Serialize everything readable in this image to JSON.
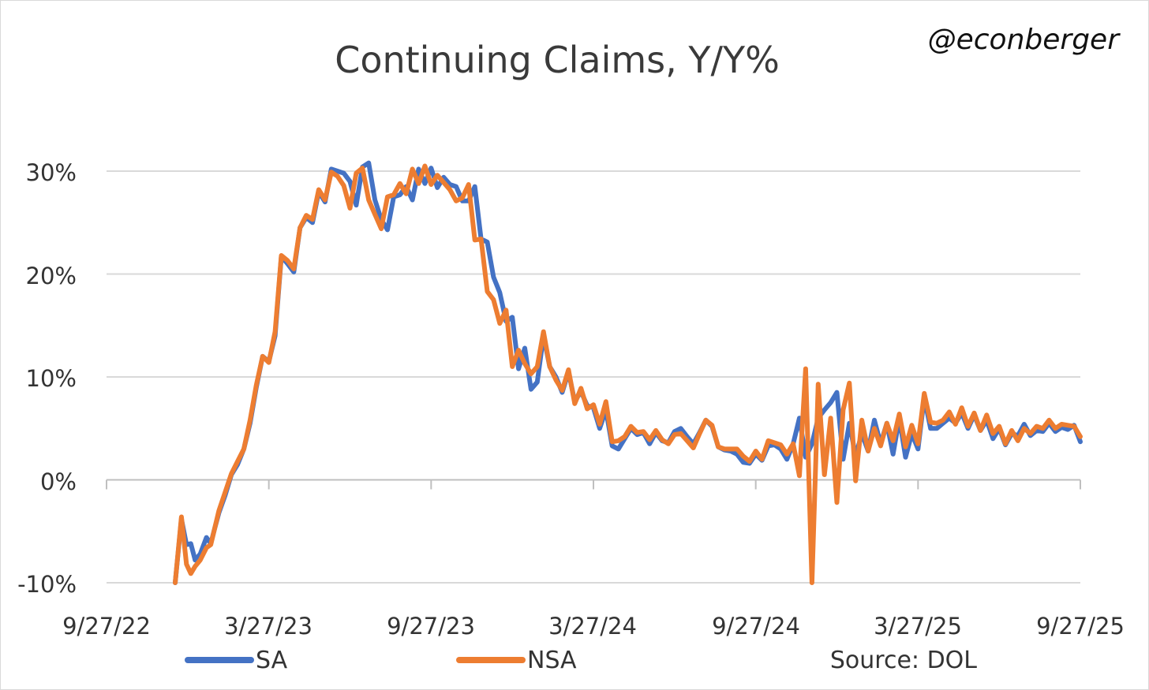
{
  "chart_data": {
    "type": "line",
    "title": "Continuing Claims, Y/Y%",
    "handle": "@econberger",
    "source": "Source: DOL",
    "x_ticks": [
      "9/27/22",
      "3/27/23",
      "9/27/23",
      "3/27/24",
      "9/27/24",
      "3/27/25",
      "9/27/25"
    ],
    "y_ticks": [
      "30%",
      "20%",
      "10%",
      "0%",
      "-10%"
    ],
    "ylim": [
      -10,
      30
    ],
    "grid": true,
    "legend_placement": "bottom",
    "x_unit": "weeks since 9/27/22",
    "colors": {
      "SA": "#4472C4",
      "NSA": "#ED7D31",
      "grid": "#d9d9d9",
      "axis": "#bfbfbf"
    },
    "series": [
      {
        "name": "SA",
        "values": [
          [
            11,
            -10
          ],
          [
            12,
            -3.8
          ],
          [
            12.8,
            -6.3
          ],
          [
            13.5,
            -6.2
          ],
          [
            14.2,
            -7.8
          ],
          [
            15,
            -7.2
          ],
          [
            16,
            -5.6
          ],
          [
            16.7,
            -6.2
          ],
          [
            17.3,
            -4.8
          ],
          [
            18,
            -3.2
          ],
          [
            19,
            -1.5
          ],
          [
            20,
            0.5
          ],
          [
            21,
            1.5
          ],
          [
            22,
            3
          ],
          [
            23,
            5.5
          ],
          [
            24,
            9
          ],
          [
            25,
            12
          ],
          [
            26,
            11.5
          ],
          [
            27,
            14
          ],
          [
            28,
            21.7
          ],
          [
            29,
            21
          ],
          [
            30,
            20.2
          ],
          [
            31,
            24.5
          ],
          [
            32,
            25.5
          ],
          [
            33,
            25
          ],
          [
            34,
            28
          ],
          [
            35,
            27
          ],
          [
            36,
            30.2
          ],
          [
            37,
            30
          ],
          [
            38,
            29.8
          ],
          [
            39,
            29
          ],
          [
            40,
            26.7
          ],
          [
            41,
            30.4
          ],
          [
            42,
            30.8
          ],
          [
            43,
            27.2
          ],
          [
            44,
            25.3
          ],
          [
            45,
            24.3
          ],
          [
            46,
            27.5
          ],
          [
            47,
            27.7
          ],
          [
            48,
            28.5
          ],
          [
            49,
            27.2
          ],
          [
            50,
            30.2
          ],
          [
            51,
            28.8
          ],
          [
            52,
            30.3
          ],
          [
            53,
            28.4
          ],
          [
            54,
            29.4
          ],
          [
            55,
            28.7
          ],
          [
            56,
            28.5
          ],
          [
            57,
            27.1
          ],
          [
            58,
            27.1
          ],
          [
            59,
            28.5
          ],
          [
            60,
            23.4
          ],
          [
            61,
            23.1
          ],
          [
            62,
            19.7
          ],
          [
            63,
            18.2
          ],
          [
            64,
            15.4
          ],
          [
            65,
            15.8
          ],
          [
            66,
            10.8
          ],
          [
            67,
            12.8
          ],
          [
            68,
            8.8
          ],
          [
            69,
            9.5
          ],
          [
            70,
            14
          ],
          [
            71,
            11
          ],
          [
            72,
            10
          ],
          [
            73,
            8.5
          ],
          [
            74,
            10.5
          ],
          [
            75,
            7.6
          ],
          [
            76,
            8.6
          ],
          [
            77,
            7.2
          ],
          [
            78,
            7
          ],
          [
            79,
            5
          ],
          [
            80,
            6.8
          ],
          [
            81,
            3.3
          ],
          [
            82,
            3
          ],
          [
            83,
            4
          ],
          [
            84,
            5
          ],
          [
            85,
            4.4
          ],
          [
            86,
            4.6
          ],
          [
            87,
            3.5
          ],
          [
            88,
            4.6
          ],
          [
            89,
            3.8
          ],
          [
            90,
            3.6
          ],
          [
            91,
            4.7
          ],
          [
            92,
            5
          ],
          [
            93,
            4.2
          ],
          [
            94,
            3.5
          ],
          [
            95,
            4.6
          ],
          [
            96,
            5.8
          ],
          [
            97,
            5.2
          ],
          [
            98,
            3.2
          ],
          [
            99,
            2.9
          ],
          [
            100,
            2.8
          ],
          [
            101,
            2.5
          ],
          [
            102,
            1.7
          ],
          [
            103,
            1.6
          ],
          [
            104,
            2.5
          ],
          [
            105,
            1.9
          ],
          [
            106,
            3.3
          ],
          [
            107,
            3.4
          ],
          [
            108,
            3
          ],
          [
            109,
            2
          ],
          [
            110,
            3.5
          ],
          [
            111,
            6
          ],
          [
            112,
            2.2
          ],
          [
            113,
            3.5
          ],
          [
            114,
            6
          ],
          [
            115,
            6.8
          ],
          [
            116,
            7.5
          ],
          [
            117,
            8.5
          ],
          [
            118,
            2
          ],
          [
            119,
            5.5
          ],
          [
            120,
            2.3
          ],
          [
            121,
            4.5
          ],
          [
            122,
            2.8
          ],
          [
            123,
            5.8
          ],
          [
            124,
            3.5
          ],
          [
            125,
            5.5
          ],
          [
            126,
            2.5
          ],
          [
            127,
            6
          ],
          [
            128,
            2.2
          ],
          [
            129,
            4.5
          ],
          [
            130,
            3
          ],
          [
            131,
            8
          ],
          [
            132,
            5
          ],
          [
            133,
            5
          ],
          [
            134,
            5.5
          ],
          [
            135,
            6
          ],
          [
            136,
            5.5
          ],
          [
            137,
            6.5
          ],
          [
            138,
            5
          ],
          [
            139,
            6.3
          ],
          [
            140,
            4.8
          ],
          [
            141,
            5.8
          ],
          [
            142,
            4
          ],
          [
            143,
            5
          ],
          [
            144,
            3.4
          ],
          [
            145,
            4.5
          ],
          [
            146,
            4.3
          ],
          [
            147,
            5.4
          ],
          [
            148,
            4.3
          ],
          [
            149,
            4.8
          ],
          [
            150,
            4.7
          ],
          [
            151,
            5.5
          ],
          [
            152,
            4.7
          ],
          [
            153,
            5.1
          ],
          [
            154,
            4.9
          ],
          [
            155,
            5.3
          ],
          [
            156,
            3.7
          ]
        ]
      },
      {
        "name": "NSA",
        "values": [
          [
            11,
            -10
          ],
          [
            12,
            -3.6
          ],
          [
            12.8,
            -8.2
          ],
          [
            13.5,
            -9.1
          ],
          [
            14.2,
            -8.4
          ],
          [
            15,
            -7.8
          ],
          [
            16,
            -6.6
          ],
          [
            16.7,
            -6.3
          ],
          [
            17.3,
            -4.8
          ],
          [
            18,
            -3
          ],
          [
            19,
            -1.2
          ],
          [
            20,
            0.6
          ],
          [
            21,
            1.8
          ],
          [
            22,
            3
          ],
          [
            23,
            5.8
          ],
          [
            24,
            9.2
          ],
          [
            25,
            12
          ],
          [
            26,
            11.4
          ],
          [
            27,
            14.4
          ],
          [
            28,
            21.8
          ],
          [
            29,
            21.3
          ],
          [
            30,
            20.5
          ],
          [
            31,
            24.5
          ],
          [
            32,
            25.7
          ],
          [
            33,
            25.3
          ],
          [
            34,
            28.2
          ],
          [
            35,
            27.2
          ],
          [
            36,
            29.9
          ],
          [
            37,
            29.5
          ],
          [
            38,
            28.6
          ],
          [
            39,
            26.4
          ],
          [
            40,
            29.8
          ],
          [
            41,
            30.3
          ],
          [
            42,
            27.2
          ],
          [
            43,
            25.8
          ],
          [
            44,
            24.4
          ],
          [
            45,
            27.5
          ],
          [
            46,
            27.7
          ],
          [
            47,
            28.8
          ],
          [
            48,
            27.8
          ],
          [
            49,
            30.2
          ],
          [
            50,
            28.8
          ],
          [
            51,
            30.5
          ],
          [
            52,
            28.7
          ],
          [
            53,
            29.6
          ],
          [
            54,
            28.9
          ],
          [
            55,
            28.2
          ],
          [
            56,
            27.1
          ],
          [
            57,
            27.4
          ],
          [
            58,
            28.7
          ],
          [
            59,
            23.3
          ],
          [
            60,
            23.4
          ],
          [
            61,
            18.3
          ],
          [
            62,
            17.5
          ],
          [
            63,
            15.2
          ],
          [
            64,
            16.5
          ],
          [
            65,
            11
          ],
          [
            66,
            12.6
          ],
          [
            67,
            11.3
          ],
          [
            68,
            10.3
          ],
          [
            69,
            11
          ],
          [
            70,
            14.4
          ],
          [
            71,
            11
          ],
          [
            72,
            9.7
          ],
          [
            73,
            8.7
          ],
          [
            74,
            10.7
          ],
          [
            75,
            7.4
          ],
          [
            76,
            8.9
          ],
          [
            77,
            6.9
          ],
          [
            78,
            7.3
          ],
          [
            79,
            5.4
          ],
          [
            80,
            7.6
          ],
          [
            81,
            3.7
          ],
          [
            82,
            3.8
          ],
          [
            83,
            4.2
          ],
          [
            84,
            5.2
          ],
          [
            85,
            4.6
          ],
          [
            86,
            4.7
          ],
          [
            87,
            3.9
          ],
          [
            88,
            4.8
          ],
          [
            89,
            3.9
          ],
          [
            90,
            3.5
          ],
          [
            91,
            4.4
          ],
          [
            92,
            4.5
          ],
          [
            93,
            3.8
          ],
          [
            94,
            3.1
          ],
          [
            95,
            4.5
          ],
          [
            96,
            5.8
          ],
          [
            97,
            5.3
          ],
          [
            98,
            3.2
          ],
          [
            99,
            3
          ],
          [
            100,
            3
          ],
          [
            101,
            3
          ],
          [
            102,
            2.3
          ],
          [
            103,
            1.8
          ],
          [
            104,
            2.8
          ],
          [
            105,
            2
          ],
          [
            106,
            3.8
          ],
          [
            107,
            3.6
          ],
          [
            108,
            3.4
          ],
          [
            109,
            2.5
          ],
          [
            110,
            3.5
          ],
          [
            111,
            0.4
          ],
          [
            112,
            10.8
          ],
          [
            113,
            -10
          ],
          [
            114,
            9.3
          ],
          [
            115,
            0.5
          ],
          [
            116,
            6
          ],
          [
            117,
            -2.2
          ],
          [
            118,
            6.8
          ],
          [
            119,
            9.4
          ],
          [
            120,
            -0.1
          ],
          [
            121,
            5.8
          ],
          [
            122,
            2.8
          ],
          [
            123,
            5
          ],
          [
            124,
            3.3
          ],
          [
            125,
            5.5
          ],
          [
            126,
            3.8
          ],
          [
            127,
            6.4
          ],
          [
            128,
            3.2
          ],
          [
            129,
            5.3
          ],
          [
            130,
            3.5
          ],
          [
            131,
            8.4
          ],
          [
            132,
            5.6
          ],
          [
            133,
            5.5
          ],
          [
            134,
            5.8
          ],
          [
            135,
            6.6
          ],
          [
            136,
            5.4
          ],
          [
            137,
            7
          ],
          [
            138,
            5.2
          ],
          [
            139,
            6.5
          ],
          [
            140,
            4.8
          ],
          [
            141,
            6.3
          ],
          [
            142,
            4.5
          ],
          [
            143,
            5.2
          ],
          [
            144,
            3.5
          ],
          [
            145,
            4.8
          ],
          [
            146,
            3.8
          ],
          [
            147,
            5
          ],
          [
            148,
            4.5
          ],
          [
            149,
            5.2
          ],
          [
            150,
            5
          ],
          [
            151,
            5.8
          ],
          [
            152,
            5
          ],
          [
            153,
            5.4
          ],
          [
            154,
            5.3
          ],
          [
            155,
            5.2
          ],
          [
            156,
            4.2
          ]
        ]
      }
    ]
  }
}
